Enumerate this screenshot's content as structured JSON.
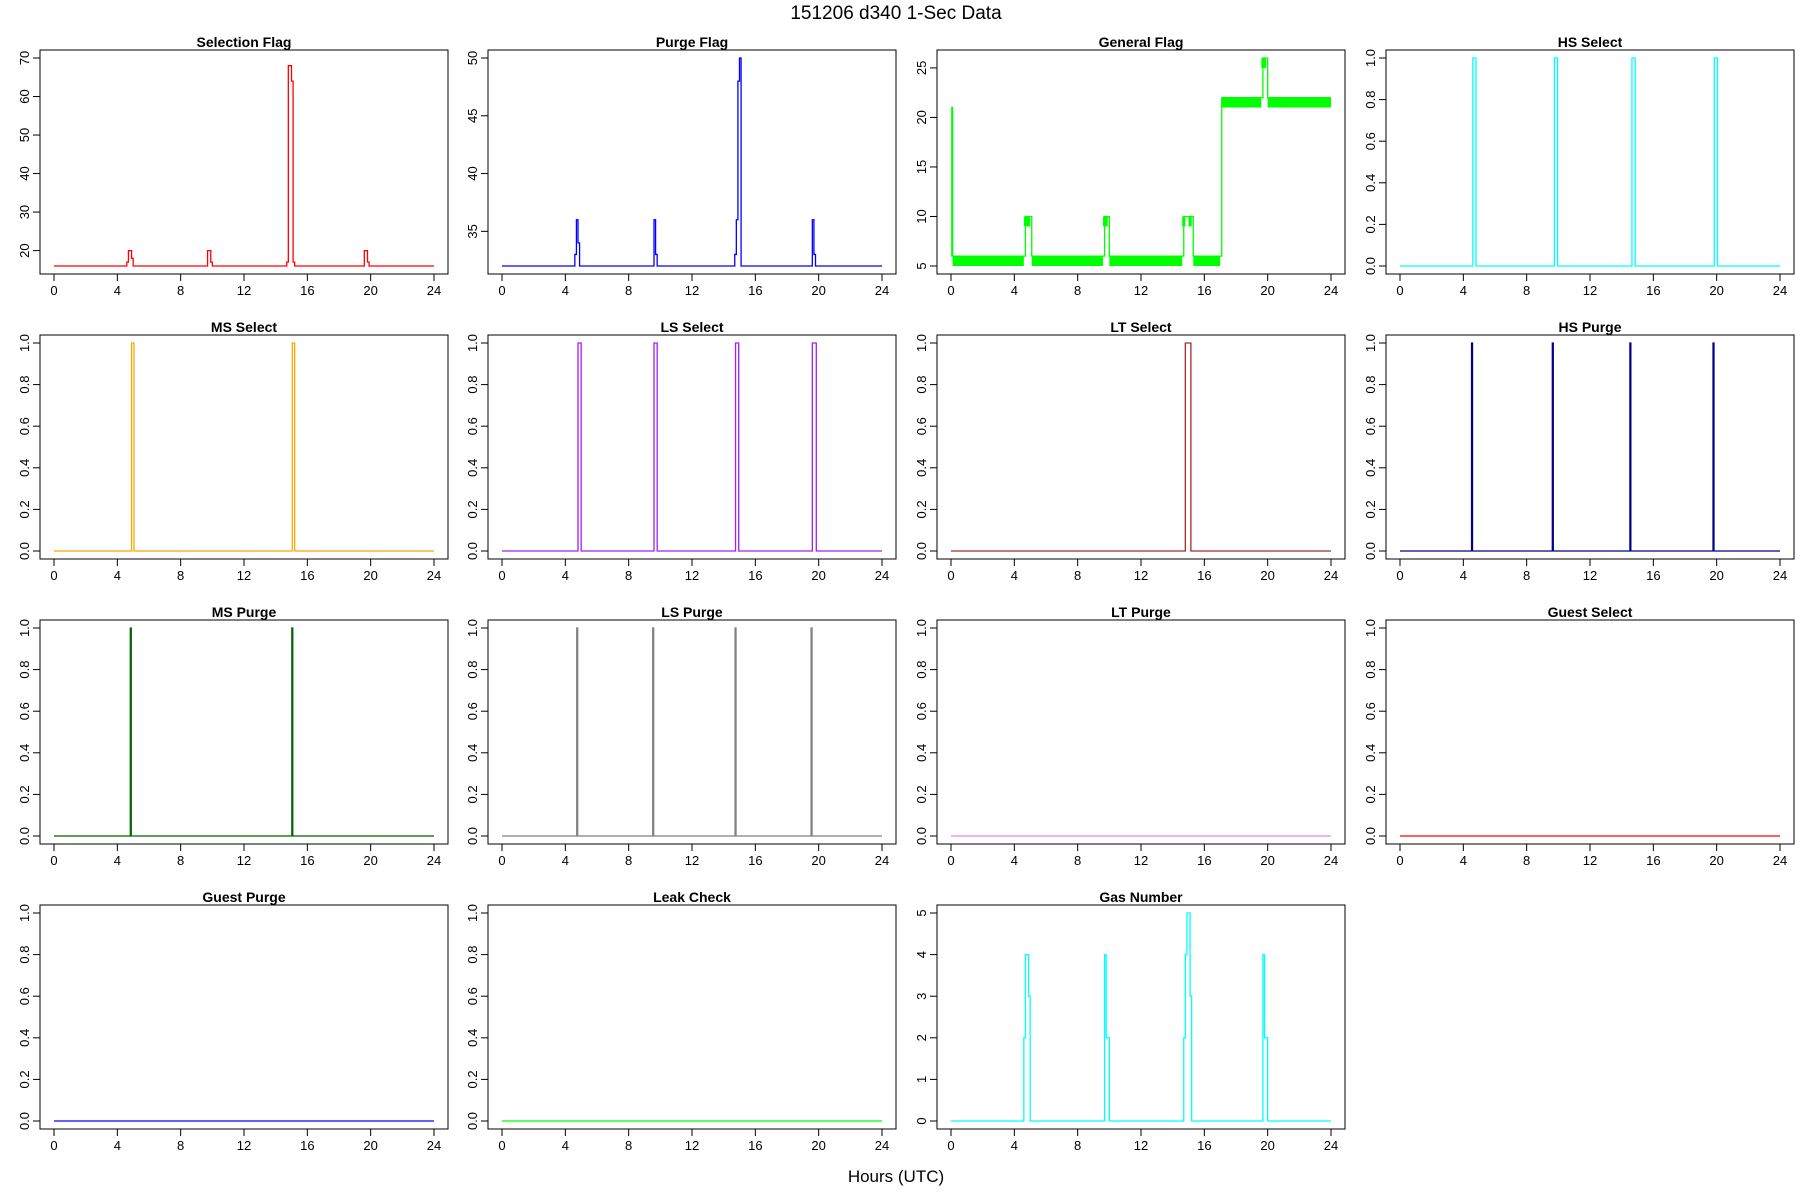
{
  "figure": {
    "title": "151206   d340   1-Sec Data",
    "xlabel": "Hours (UTC)"
  },
  "chart_data": [
    {
      "type": "line",
      "title": "Selection Flag",
      "color": "#ff0000",
      "xlim": [
        0,
        24
      ],
      "ylim": [
        16,
        70
      ],
      "xticks": [
        0,
        4,
        8,
        12,
        16,
        20,
        24
      ],
      "yticks": [
        20,
        30,
        40,
        50,
        60,
        70
      ],
      "x": [
        0,
        4.5,
        4.6,
        4.7,
        4.9,
        5.0,
        9.6,
        9.7,
        9.9,
        10.0,
        14.6,
        14.7,
        14.8,
        15.0,
        15.1,
        15.2,
        19.5,
        19.6,
        19.8,
        19.9,
        24
      ],
      "y": [
        16,
        16,
        17,
        20,
        18,
        16,
        16,
        20,
        17,
        16,
        16,
        17,
        68,
        64,
        17,
        16,
        16,
        20,
        17,
        16,
        16
      ]
    },
    {
      "type": "line",
      "title": "Purge Flag",
      "color": "#0000ff",
      "xlim": [
        0,
        24
      ],
      "ylim": [
        32,
        50
      ],
      "xticks": [
        0,
        4,
        8,
        12,
        16,
        20,
        24
      ],
      "yticks": [
        35,
        40,
        45,
        50
      ],
      "x": [
        0,
        4.5,
        4.6,
        4.7,
        4.8,
        4.9,
        5.0,
        9.5,
        9.6,
        9.7,
        9.8,
        14.6,
        14.7,
        14.8,
        14.9,
        15.0,
        15.1,
        19.5,
        19.6,
        19.7,
        19.8,
        24
      ],
      "y": [
        32,
        32,
        33,
        36,
        34,
        32,
        32,
        32,
        36,
        33,
        32,
        32,
        33,
        36,
        48,
        50,
        32,
        32,
        36,
        33,
        32,
        32
      ]
    },
    {
      "type": "line",
      "title": "General Flag",
      "color": "#00ff00",
      "xlim": [
        0,
        24
      ],
      "ylim": [
        5,
        26
      ],
      "xticks": [
        0,
        4,
        8,
        12,
        16,
        20,
        24
      ],
      "yticks": [
        5,
        10,
        15,
        20,
        25
      ],
      "x": [
        0,
        0.05,
        0.1,
        4.6,
        4.7,
        5.0,
        5.1,
        9.6,
        9.7,
        9.9,
        10.0,
        14.6,
        14.7,
        15.2,
        15.3,
        17.0,
        17.1,
        19.6,
        19.7,
        19.9,
        20.0,
        24
      ],
      "y": [
        6,
        21,
        6,
        6,
        10,
        10,
        6,
        6,
        10,
        10,
        6,
        6,
        10,
        10,
        6,
        6,
        22,
        22,
        26,
        26,
        22,
        22
      ],
      "band": [
        {
          "x0": 0.1,
          "x1": 4.6,
          "y0": 5,
          "y1": 6
        },
        {
          "x0": 4.6,
          "x1": 5.0,
          "y0": 9,
          "y1": 10
        },
        {
          "x0": 5.1,
          "x1": 9.6,
          "y0": 5,
          "y1": 6
        },
        {
          "x0": 9.6,
          "x1": 9.9,
          "y0": 9,
          "y1": 10
        },
        {
          "x0": 10.0,
          "x1": 14.6,
          "y0": 5,
          "y1": 6
        },
        {
          "x0": 14.6,
          "x1": 14.8,
          "y0": 9,
          "y1": 10
        },
        {
          "x0": 15.0,
          "x1": 15.2,
          "y0": 9,
          "y1": 10
        },
        {
          "x0": 15.3,
          "x1": 17.0,
          "y0": 5,
          "y1": 6
        },
        {
          "x0": 17.1,
          "x1": 19.6,
          "y0": 21,
          "y1": 22
        },
        {
          "x0": 19.6,
          "x1": 19.9,
          "y0": 25,
          "y1": 26
        },
        {
          "x0": 20.0,
          "x1": 24,
          "y0": 21,
          "y1": 22
        }
      ]
    },
    {
      "type": "line",
      "title": "HS Select",
      "color": "#00ffff",
      "xlim": [
        0,
        24
      ],
      "ylim": [
        0,
        1
      ],
      "xticks": [
        0,
        4,
        8,
        12,
        16,
        20,
        24
      ],
      "yticks": [
        0.0,
        0.2,
        0.4,
        0.6,
        0.8,
        1.0
      ],
      "x": [
        0,
        4.55,
        4.6,
        4.75,
        4.8,
        9.7,
        9.75,
        9.9,
        9.95,
        14.6,
        14.65,
        14.8,
        14.85,
        19.8,
        19.85,
        20.0,
        20.05,
        24
      ],
      "y": [
        0,
        0,
        1,
        1,
        0,
        0,
        1,
        1,
        0,
        0,
        1,
        1,
        0,
        0,
        1,
        1,
        0,
        0
      ]
    },
    {
      "type": "line",
      "title": "MS Select",
      "color": "#ffa500",
      "xlim": [
        0,
        24
      ],
      "ylim": [
        0,
        1
      ],
      "xticks": [
        0,
        4,
        8,
        12,
        16,
        20,
        24
      ],
      "yticks": [
        0.0,
        0.2,
        0.4,
        0.6,
        0.8,
        1.0
      ],
      "x": [
        0,
        4.85,
        4.9,
        5.0,
        5.05,
        15.0,
        15.05,
        15.15,
        15.2,
        24
      ],
      "y": [
        0,
        0,
        1,
        1,
        0,
        0,
        1,
        1,
        0,
        0
      ]
    },
    {
      "type": "line",
      "title": "LS Select",
      "color": "#a020f0",
      "xlim": [
        0,
        24
      ],
      "ylim": [
        0,
        1
      ],
      "xticks": [
        0,
        4,
        8,
        12,
        16,
        20,
        24
      ],
      "yticks": [
        0.0,
        0.2,
        0.4,
        0.6,
        0.8,
        1.0
      ],
      "x": [
        0,
        4.75,
        4.8,
        4.95,
        5.0,
        9.55,
        9.6,
        9.75,
        9.8,
        14.7,
        14.75,
        14.9,
        14.95,
        19.55,
        19.6,
        19.8,
        19.85,
        24
      ],
      "y": [
        0,
        0,
        1,
        1,
        0,
        0,
        1,
        1,
        0,
        0,
        1,
        1,
        0,
        0,
        1,
        1,
        0,
        0
      ]
    },
    {
      "type": "line",
      "title": "LT Select",
      "color": "#a52a2a",
      "xlim": [
        0,
        24
      ],
      "ylim": [
        0,
        1
      ],
      "xticks": [
        0,
        4,
        8,
        12,
        16,
        20,
        24
      ],
      "yticks": [
        0.0,
        0.2,
        0.4,
        0.6,
        0.8,
        1.0
      ],
      "x": [
        0,
        14.75,
        14.8,
        15.1,
        15.15,
        24
      ],
      "y": [
        0,
        0,
        1,
        1,
        0,
        0
      ]
    },
    {
      "type": "line",
      "title": "HS Purge",
      "color": "#00008b",
      "xlim": [
        0,
        24
      ],
      "ylim": [
        0,
        1
      ],
      "xticks": [
        0,
        4,
        8,
        12,
        16,
        20,
        24
      ],
      "yticks": [
        0.0,
        0.2,
        0.4,
        0.6,
        0.8,
        1.0
      ],
      "x": [
        0,
        4.5,
        4.52,
        4.56,
        4.58,
        9.6,
        9.62,
        9.66,
        9.68,
        14.5,
        14.52,
        14.56,
        14.58,
        19.75,
        19.77,
        19.81,
        19.83,
        24
      ],
      "y": [
        0,
        0,
        1,
        1,
        0,
        0,
        1,
        1,
        0,
        0,
        1,
        1,
        0,
        0,
        1,
        1,
        0,
        0
      ]
    },
    {
      "type": "line",
      "title": "MS Purge",
      "color": "#006400",
      "xlim": [
        0,
        24
      ],
      "ylim": [
        0,
        1
      ],
      "xticks": [
        0,
        4,
        8,
        12,
        16,
        20,
        24
      ],
      "yticks": [
        0.0,
        0.2,
        0.4,
        0.6,
        0.8,
        1.0
      ],
      "x": [
        0,
        4.8,
        4.82,
        4.86,
        4.88,
        15.0,
        15.02,
        15.06,
        15.08,
        24
      ],
      "y": [
        0,
        0,
        1,
        1,
        0,
        0,
        1,
        1,
        0,
        0
      ]
    },
    {
      "type": "line",
      "title": "LS Purge",
      "color": "#808080",
      "xlim": [
        0,
        24
      ],
      "ylim": [
        0,
        1
      ],
      "xticks": [
        0,
        4,
        8,
        12,
        16,
        20,
        24
      ],
      "yticks": [
        0.0,
        0.2,
        0.4,
        0.6,
        0.8,
        1.0
      ],
      "x": [
        0,
        4.7,
        4.72,
        4.76,
        4.78,
        9.5,
        9.52,
        9.56,
        9.58,
        14.7,
        14.72,
        14.76,
        14.78,
        19.5,
        19.52,
        19.56,
        19.58,
        24
      ],
      "y": [
        0,
        0,
        1,
        1,
        0,
        0,
        1,
        1,
        0,
        0,
        1,
        1,
        0,
        0,
        1,
        1,
        0,
        0
      ]
    },
    {
      "type": "line",
      "title": "LT Purge",
      "color": "#ee82ee",
      "xlim": [
        0,
        24
      ],
      "ylim": [
        0,
        1
      ],
      "xticks": [
        0,
        4,
        8,
        12,
        16,
        20,
        24
      ],
      "yticks": [
        0.0,
        0.2,
        0.4,
        0.6,
        0.8,
        1.0
      ],
      "x": [
        0,
        24
      ],
      "y": [
        0,
        0
      ]
    },
    {
      "type": "line",
      "title": "Guest Select",
      "color": "#ff0000",
      "xlim": [
        0,
        24
      ],
      "ylim": [
        0,
        1
      ],
      "xticks": [
        0,
        4,
        8,
        12,
        16,
        20,
        24
      ],
      "yticks": [
        0.0,
        0.2,
        0.4,
        0.6,
        0.8,
        1.0
      ],
      "x": [
        0,
        24
      ],
      "y": [
        0,
        0
      ]
    },
    {
      "type": "line",
      "title": "Guest Purge",
      "color": "#0000ff",
      "xlim": [
        0,
        24
      ],
      "ylim": [
        0,
        1
      ],
      "xticks": [
        0,
        4,
        8,
        12,
        16,
        20,
        24
      ],
      "yticks": [
        0.0,
        0.2,
        0.4,
        0.6,
        0.8,
        1.0
      ],
      "x": [
        0,
        24
      ],
      "y": [
        0,
        0
      ]
    },
    {
      "type": "line",
      "title": "Leak Check",
      "color": "#00ff00",
      "xlim": [
        0,
        24
      ],
      "ylim": [
        0,
        1
      ],
      "xticks": [
        0,
        4,
        8,
        12,
        16,
        20,
        24
      ],
      "yticks": [
        0.0,
        0.2,
        0.4,
        0.6,
        0.8,
        1.0
      ],
      "x": [
        0,
        24
      ],
      "y": [
        0,
        0
      ]
    },
    {
      "type": "line",
      "title": "Gas Number",
      "color": "#00ffff",
      "xlim": [
        0,
        24
      ],
      "ylim": [
        0,
        5
      ],
      "xticks": [
        0,
        4,
        8,
        12,
        16,
        20,
        24
      ],
      "yticks": [
        0,
        1,
        2,
        3,
        4,
        5
      ],
      "x": [
        0,
        4.5,
        4.6,
        4.7,
        4.9,
        5.0,
        5.1,
        9.6,
        9.7,
        9.8,
        10.0,
        14.6,
        14.7,
        14.8,
        14.9,
        15.1,
        15.2,
        19.6,
        19.7,
        19.8,
        20.0,
        24
      ],
      "y": [
        0,
        0,
        2,
        4,
        3,
        0,
        0,
        0,
        4,
        2,
        0,
        0,
        2,
        4,
        5,
        3,
        0,
        0,
        4,
        2,
        0,
        0
      ]
    }
  ]
}
